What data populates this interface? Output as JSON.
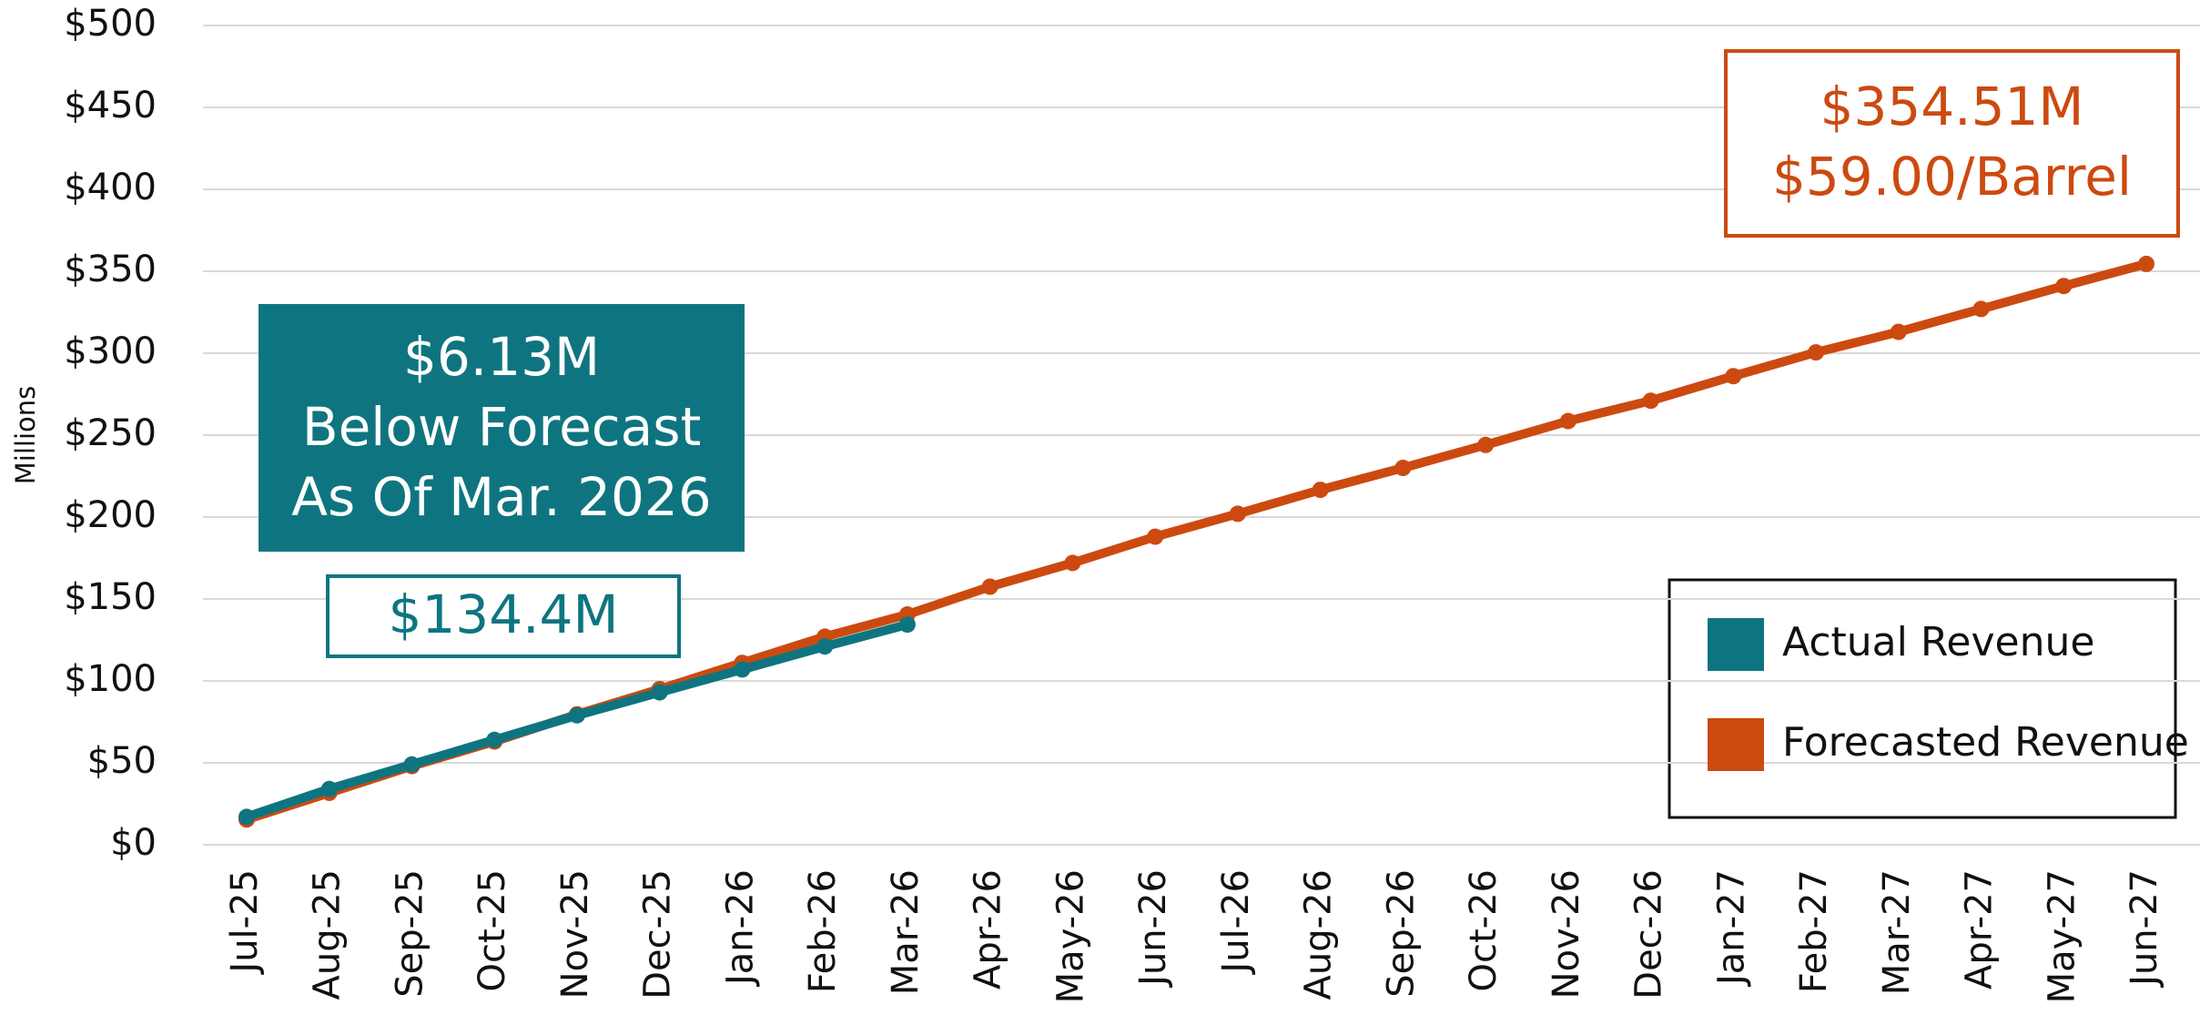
{
  "chart_data": {
    "type": "line",
    "y_label": "Millions",
    "categories": [
      "Jul-25",
      "Aug-25",
      "Sep-25",
      "Oct-25",
      "Nov-25",
      "Dec-25",
      "Jan-26",
      "Feb-26",
      "Mar-26",
      "Apr-26",
      "May-26",
      "Jun-26",
      "Jul-26",
      "Aug-26",
      "Sep-26",
      "Oct-26",
      "Nov-26",
      "Dec-26",
      "Jan-27",
      "Feb-27",
      "Mar-27",
      "Apr-27",
      "May-27",
      "Jun-27"
    ],
    "series": [
      {
        "name": "Forecasted Revenue",
        "color": "#cc4a10",
        "values": [
          15.4,
          31.7,
          48,
          63,
          79.6,
          95,
          111,
          127,
          140.53,
          157.5,
          172,
          188,
          202,
          216.6,
          230,
          244,
          258.6,
          271,
          286,
          300.5,
          313,
          327,
          341,
          354.51
        ]
      },
      {
        "name": "Actual Revenue",
        "color": "#0e7580",
        "values": [
          17,
          34,
          49,
          64,
          79,
          93,
          107,
          121,
          134.4,
          null,
          null,
          null,
          null,
          null,
          null,
          null,
          null,
          null,
          null,
          null,
          null,
          null,
          null,
          null
        ]
      }
    ],
    "legend_order": [
      1,
      0
    ],
    "ylim": [
      0,
      500
    ],
    "yticks": [
      {
        "value": 0,
        "label": "$0"
      },
      {
        "value": 50,
        "label": "$50"
      },
      {
        "value": 100,
        "label": "$100"
      },
      {
        "value": 150,
        "label": "$150"
      },
      {
        "value": 200,
        "label": "$200"
      },
      {
        "value": 250,
        "label": "$250"
      },
      {
        "value": 300,
        "label": "$300"
      },
      {
        "value": 350,
        "label": "$350"
      },
      {
        "value": 400,
        "label": "$400"
      },
      {
        "value": 450,
        "label": "$450"
      },
      {
        "value": 500,
        "label": "$500"
      }
    ],
    "grid": true,
    "annotations": [
      {
        "lines": [
          "$6.13M",
          "Below Forecast",
          "As Of Mar. 2026"
        ],
        "color": "#0e7580",
        "style": "filled"
      },
      {
        "lines": [
          "$134.4M"
        ],
        "color": "#0e7580",
        "style": "outlined"
      },
      {
        "lines": [
          "$354.51M",
          "$59.00/Barrel"
        ],
        "color": "#cc4a10",
        "style": "outlined"
      }
    ]
  }
}
